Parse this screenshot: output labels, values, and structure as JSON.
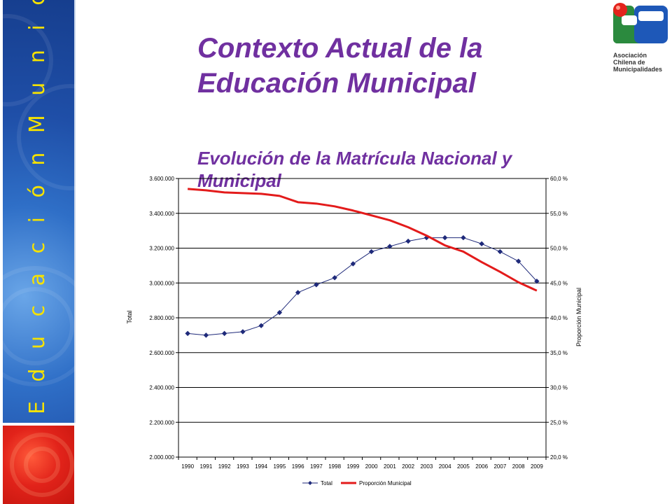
{
  "side_label": "E d u c a c i ó n   M u n i c i p a l",
  "title": "Contexto Actual de la Educación Municipal",
  "subtitle": "Evolución de la Matrícula Nacional y Municipal",
  "logo": {
    "line1": "Asociación",
    "line2": "Chilena de",
    "line3": "Municipalidades"
  },
  "colors": {
    "title": "#7030a0",
    "side_label": "#f5e200",
    "total_series": "#1f2a7a",
    "proporcion_series": "#e31b1b"
  },
  "chart_data": {
    "type": "line",
    "x": [
      "1990",
      "1991",
      "1992",
      "1993",
      "1994",
      "1995",
      "1996",
      "1997",
      "1998",
      "1999",
      "2000",
      "2001",
      "2002",
      "2003",
      "2004",
      "2005",
      "2006",
      "2007",
      "2008",
      "2009"
    ],
    "ylabel": "Total",
    "y2label": "Proporción Municipal",
    "ylim": [
      2000000,
      3600000
    ],
    "y2lim": [
      20.0,
      60.0
    ],
    "yticks": [
      "2.000.000",
      "2.200.000",
      "2.400.000",
      "2.600.000",
      "2.800.000",
      "3.000.000",
      "3.200.000",
      "3.400.000",
      "3.600.000"
    ],
    "y2ticks": [
      "20,0 %",
      "25,0 %",
      "30,0 %",
      "35,0 %",
      "40,0 %",
      "45,0 %",
      "50,0 %",
      "55,0 %",
      "60,0 %"
    ],
    "grid": true,
    "legend_position": "bottom",
    "series": [
      {
        "name": "Total",
        "axis": "left",
        "marker": "diamond",
        "values": [
          2710000,
          2700000,
          2710000,
          2720000,
          2755000,
          2830000,
          2945000,
          2990000,
          3030000,
          3110000,
          3180000,
          3210000,
          3240000,
          3260000,
          3260000,
          3260000,
          3225000,
          3180000,
          3125000,
          3010000
        ]
      },
      {
        "name": "Proporción Municipal",
        "axis": "right",
        "marker": "none",
        "values": [
          58.5,
          58.3,
          58.0,
          57.9,
          57.8,
          57.5,
          56.6,
          56.4,
          56.0,
          55.4,
          54.7,
          54.0,
          53.0,
          51.8,
          50.4,
          49.5,
          48.0,
          46.6,
          45.1,
          43.9
        ]
      }
    ]
  }
}
